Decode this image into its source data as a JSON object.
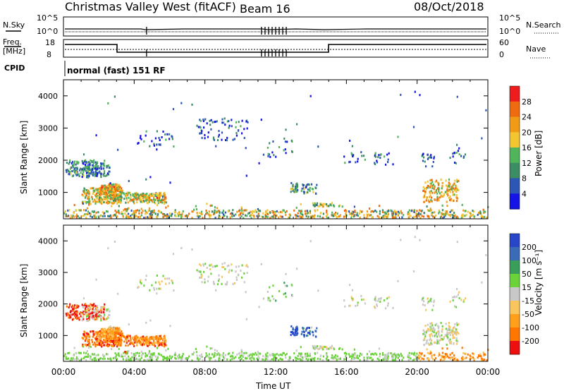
{
  "header": {
    "title": "Christmas Valley West (fitACF)",
    "beam": "Beam 16",
    "date": "08/Oct/2018"
  },
  "nsky_panel": {
    "left_label": "N.Sky",
    "right_label": "N.Search",
    "left_ticks": [
      "10^5",
      "10^0"
    ],
    "right_ticks": [
      "10^5",
      "10^0"
    ]
  },
  "freq_panel": {
    "left_label_1": "Freq.",
    "left_label_2": "[MHz]",
    "right_label": "Nave",
    "left_ticks": [
      "18",
      "8"
    ],
    "right_ticks": [
      "60",
      "0"
    ]
  },
  "cpid": {
    "label": "CPID",
    "value": "normal (fast) 151 RF"
  },
  "colors": {
    "velocity_scale": [
      "#ee1010",
      "#ff7700",
      "#ff9f1c",
      "#f9c55c",
      "#c8c8c8",
      "#6bd33a",
      "#3a9e5a",
      "#3a6bb8",
      "#2846c8"
    ],
    "power_scale": [
      "#1414e6",
      "#2d57b4",
      "#3c8c64",
      "#50b45a",
      "#f2c531",
      "#f09a16",
      "#ef6b10",
      "#ee1c1c"
    ]
  },
  "chart_data": [
    {
      "type": "heatmap",
      "name": "power",
      "ylabel": "Slant Range [km]",
      "ylim": [
        180,
        4500
      ],
      "y_ticks": [
        1000,
        2000,
        3000,
        4000
      ],
      "x_ticks": [
        "00:00",
        "04:00",
        "08:00",
        "12:00",
        "16:00",
        "20:00",
        "00:00"
      ],
      "xlim_hours": [
        0,
        24
      ],
      "colorbar_label": "Power [dB]",
      "colorbar_ticks": [
        "4",
        "8",
        "12",
        "16",
        "20",
        "24",
        "28"
      ],
      "colorbar_range": [
        0,
        30
      ]
    },
    {
      "type": "heatmap",
      "name": "velocity",
      "ylabel": "Slant Range [km]",
      "ylim": [
        180,
        4500
      ],
      "y_ticks": [
        1000,
        2000,
        3000,
        4000
      ],
      "x_ticks": [
        "00:00",
        "04:00",
        "08:00",
        "12:00",
        "16:00",
        "20:00",
        "00:00"
      ],
      "xlim_hours": [
        0,
        24
      ],
      "xlabel": "Time UT",
      "colorbar_label": "Velocity [m s⁻¹]",
      "colorbar_ticks": [
        "200",
        "100",
        "50",
        "15",
        "-15",
        "-50",
        "-100",
        "-200"
      ]
    }
  ]
}
